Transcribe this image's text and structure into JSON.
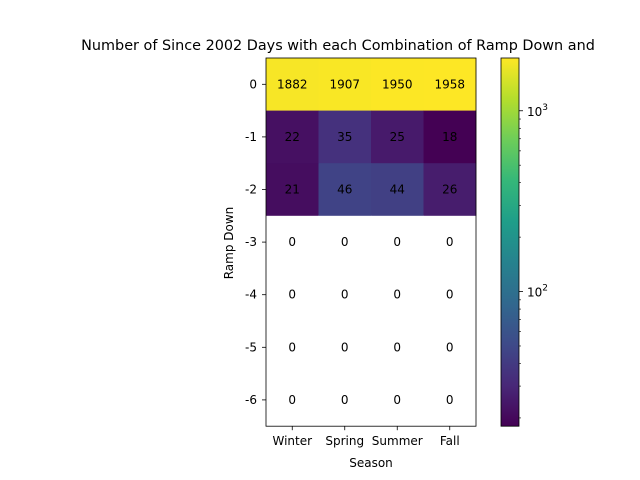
{
  "chart_data": {
    "type": "heatmap",
    "title": "Number of Since 2002 Days with each Combination of Ramp Down and",
    "xlabel": "Season",
    "ylabel": "Ramp Down",
    "x_categories": [
      "Winter",
      "Spring",
      "Summer",
      "Fall"
    ],
    "y_categories": [
      "0",
      "-1",
      "-2",
      "-3",
      "-4",
      "-5",
      "-6"
    ],
    "values": [
      [
        1882,
        1907,
        1950,
        1958
      ],
      [
        22,
        35,
        25,
        18
      ],
      [
        21,
        46,
        44,
        26
      ],
      [
        0,
        0,
        0,
        0
      ],
      [
        0,
        0,
        0,
        0
      ],
      [
        0,
        0,
        0,
        0
      ],
      [
        0,
        0,
        0,
        0
      ]
    ],
    "colorbar": {
      "scale": "log",
      "colormap": "viridis",
      "range": [
        18,
        1958
      ],
      "major_ticks": [
        100,
        1000
      ],
      "major_tick_labels": [
        "10^2",
        "10^3"
      ]
    },
    "zero_cell_color": "#ffffff",
    "grid": false
  }
}
